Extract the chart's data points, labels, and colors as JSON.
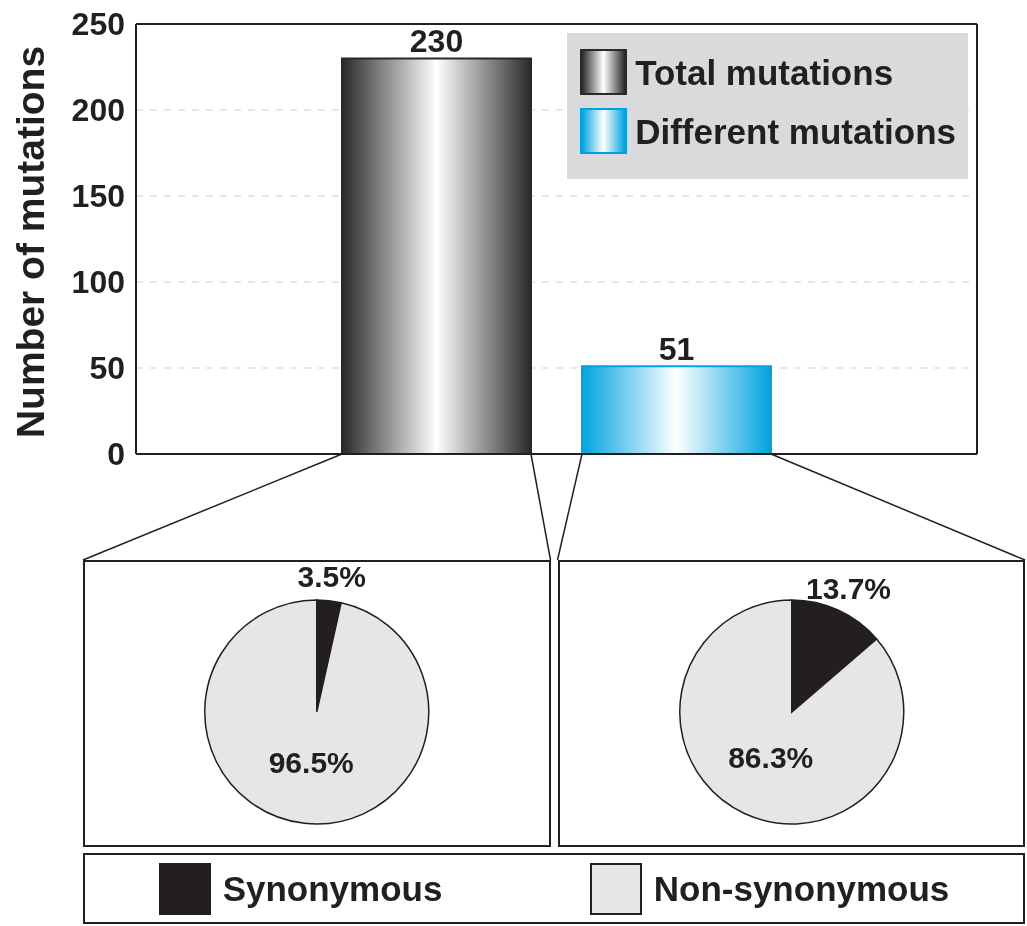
{
  "chart_data": [
    {
      "type": "bar",
      "categories": [
        null
      ],
      "series": [
        {
          "name": "Total mutations",
          "color": "#2b2829",
          "values": [
            230
          ]
        },
        {
          "name": "Different mutations",
          "color": "#00a3e0",
          "values": [
            51
          ]
        }
      ],
      "ylabel": "Number of mutations",
      "ylim": [
        0,
        250
      ],
      "yticks": [
        0,
        50,
        100,
        150,
        200,
        250
      ],
      "grid": "y",
      "legend": "top right",
      "data_labels": true
    },
    {
      "type": "pie",
      "categories": [
        "Synonymous",
        "Non-synonymous"
      ],
      "values": [
        3.5,
        96.5
      ],
      "colors": [
        "#231f20",
        "#e6e6e6"
      ],
      "value_labels": [
        "3.5%",
        "96.5%"
      ],
      "legend": "bottom"
    },
    {
      "type": "pie",
      "categories": [
        null,
        null
      ],
      "values": [
        13.7,
        86.3
      ],
      "colors": [
        "#231f20",
        "#e6e6e6"
      ],
      "value_labels": [
        "13.7%",
        "86.3%"
      ]
    }
  ]
}
